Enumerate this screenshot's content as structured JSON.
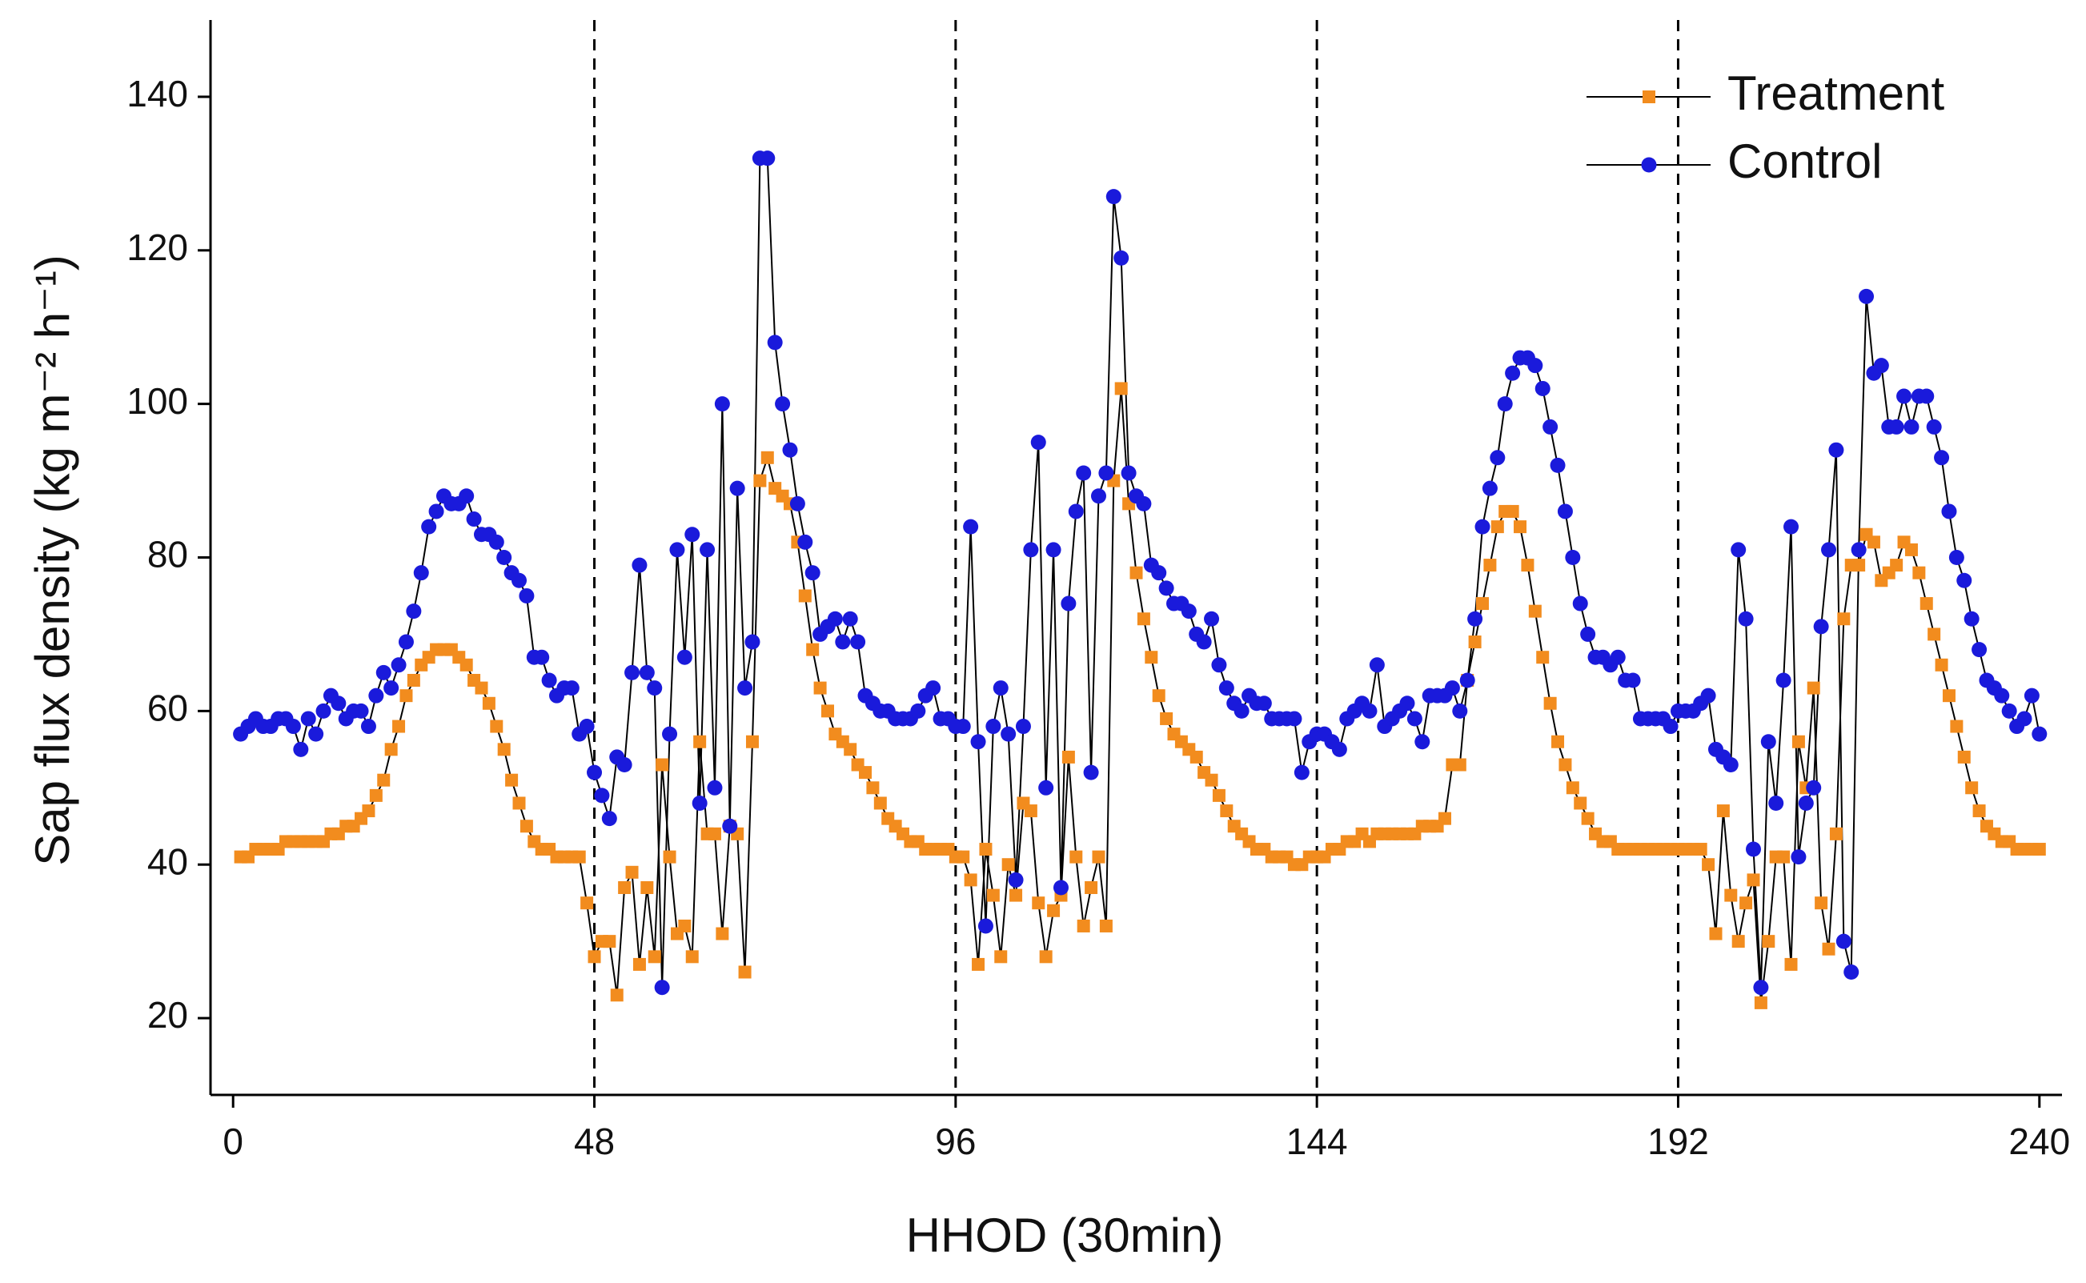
{
  "chart_data": {
    "type": "line",
    "xlabel": "HHOD (30min)",
    "ylabel": "Sap flux density (kg m⁻² h⁻¹)",
    "xlim": [
      -3,
      243
    ],
    "ylim": [
      10,
      150
    ],
    "xticks": [
      0,
      48,
      96,
      144,
      192,
      240
    ],
    "yticks": [
      20,
      40,
      60,
      80,
      100,
      120,
      140
    ],
    "vlines": [
      48,
      96,
      144,
      192
    ],
    "legend": "upper right",
    "x": [
      1,
      2,
      3,
      4,
      5,
      6,
      7,
      8,
      9,
      10,
      11,
      12,
      13,
      14,
      15,
      16,
      17,
      18,
      19,
      20,
      21,
      22,
      23,
      24,
      25,
      26,
      27,
      28,
      29,
      30,
      31,
      32,
      33,
      34,
      35,
      36,
      37,
      38,
      39,
      40,
      41,
      42,
      43,
      44,
      45,
      46,
      47,
      48,
      49,
      50,
      51,
      52,
      53,
      54,
      55,
      56,
      57,
      58,
      59,
      60,
      61,
      62,
      63,
      64,
      65,
      66,
      67,
      68,
      69,
      70,
      71,
      72,
      73,
      74,
      75,
      76,
      77,
      78,
      79,
      80,
      81,
      82,
      83,
      84,
      85,
      86,
      87,
      88,
      89,
      90,
      91,
      92,
      93,
      94,
      95,
      96,
      97,
      98,
      99,
      100,
      101,
      102,
      103,
      104,
      105,
      106,
      107,
      108,
      109,
      110,
      111,
      112,
      113,
      114,
      115,
      116,
      117,
      118,
      119,
      120,
      121,
      122,
      123,
      124,
      125,
      126,
      127,
      128,
      129,
      130,
      131,
      132,
      133,
      134,
      135,
      136,
      137,
      138,
      139,
      140,
      141,
      142,
      143,
      144,
      145,
      146,
      147,
      148,
      149,
      150,
      151,
      152,
      153,
      154,
      155,
      156,
      157,
      158,
      159,
      160,
      161,
      162,
      163,
      164,
      165,
      166,
      167,
      168,
      169,
      170,
      171,
      172,
      173,
      174,
      175,
      176,
      177,
      178,
      179,
      180,
      181,
      182,
      183,
      184,
      185,
      186,
      187,
      188,
      189,
      190,
      191,
      192,
      193,
      194,
      195,
      196,
      197,
      198,
      199,
      200,
      201,
      202,
      203,
      204,
      205,
      206,
      207,
      208,
      209,
      210,
      211,
      212,
      213,
      214,
      215,
      216,
      217,
      218,
      219,
      220,
      221,
      222,
      223,
      224,
      225,
      226,
      227,
      228,
      229,
      230,
      231,
      232,
      233,
      234,
      235,
      236,
      237,
      238,
      239,
      240
    ],
    "series": [
      {
        "name": "Treatment",
        "color": "#f28c1e",
        "marker": "square",
        "values": [
          41,
          41,
          42,
          42,
          42,
          42,
          43,
          43,
          43,
          43,
          43,
          43,
          44,
          44,
          45,
          45,
          46,
          47,
          49,
          51,
          55,
          58,
          62,
          64,
          66,
          67,
          68,
          68,
          68,
          67,
          66,
          64,
          63,
          61,
          58,
          55,
          51,
          48,
          45,
          43,
          42,
          42,
          41,
          41,
          41,
          41,
          35,
          28,
          30,
          30,
          23,
          37,
          39,
          27,
          37,
          28,
          53,
          41,
          31,
          32,
          28,
          56,
          44,
          44,
          31,
          45,
          44,
          26,
          56,
          90,
          93,
          89,
          88,
          87,
          82,
          75,
          68,
          63,
          60,
          57,
          56,
          55,
          53,
          52,
          50,
          48,
          46,
          45,
          44,
          43,
          43,
          42,
          42,
          42,
          42,
          41,
          41,
          38,
          27,
          42,
          36,
          28,
          40,
          36,
          48,
          47,
          35,
          28,
          34,
          36,
          54,
          41,
          32,
          37,
          41,
          32,
          90,
          102,
          87,
          78,
          72,
          67,
          62,
          59,
          57,
          56,
          55,
          54,
          52,
          51,
          49,
          47,
          45,
          44,
          43,
          42,
          42,
          41,
          41,
          41,
          40,
          40,
          41,
          41,
          41,
          42,
          42,
          43,
          43,
          44,
          43,
          44,
          44,
          44,
          44,
          44,
          44,
          45,
          45,
          45,
          46,
          53,
          53,
          64,
          69,
          74,
          79,
          84,
          86,
          86,
          84,
          79,
          73,
          67,
          61,
          56,
          53,
          50,
          48,
          46,
          44,
          43,
          43,
          42,
          42,
          42,
          42,
          42,
          42,
          42,
          42,
          42,
          42,
          42,
          42,
          40,
          31,
          47,
          36,
          30,
          35,
          38,
          22,
          30,
          41,
          41,
          27,
          56,
          50,
          63,
          35,
          29,
          44,
          72,
          79,
          79,
          83,
          82,
          77,
          78,
          79,
          82,
          81,
          78,
          74,
          70,
          66,
          62,
          58,
          54,
          50,
          47,
          45,
          44,
          43,
          43,
          42,
          42,
          42,
          42
        ]
      },
      {
        "name": "Control",
        "color": "#1a1adb",
        "marker": "circle",
        "values": [
          57,
          58,
          59,
          58,
          58,
          59,
          59,
          58,
          55,
          59,
          57,
          60,
          62,
          61,
          59,
          60,
          60,
          58,
          62,
          65,
          63,
          66,
          69,
          73,
          78,
          84,
          86,
          88,
          87,
          87,
          88,
          85,
          83,
          83,
          82,
          80,
          78,
          77,
          75,
          67,
          67,
          64,
          62,
          63,
          63,
          57,
          58,
          52,
          49,
          46,
          54,
          53,
          65,
          79,
          65,
          63,
          24,
          57,
          81,
          67,
          83,
          48,
          81,
          50,
          100,
          45,
          89,
          63,
          69,
          132,
          132,
          108,
          100,
          94,
          87,
          82,
          78,
          70,
          71,
          72,
          69,
          72,
          69,
          62,
          61,
          60,
          60,
          59,
          59,
          59,
          60,
          62,
          63,
          59,
          59,
          58,
          58,
          84,
          56,
          32,
          58,
          63,
          57,
          38,
          58,
          81,
          95,
          50,
          81,
          37,
          74,
          86,
          91,
          52,
          88,
          91,
          127,
          119,
          91,
          88,
          87,
          79,
          78,
          76,
          74,
          74,
          73,
          70,
          69,
          72,
          66,
          63,
          61,
          60,
          62,
          61,
          61,
          59,
          59,
          59,
          59,
          52,
          56,
          57,
          57,
          56,
          55,
          59,
          60,
          61,
          60,
          66,
          58,
          59,
          60,
          61,
          59,
          56,
          62,
          62,
          62,
          63,
          60,
          64,
          72,
          84,
          89,
          93,
          100,
          104,
          106,
          106,
          105,
          102,
          97,
          92,
          86,
          80,
          74,
          70,
          67,
          67,
          66,
          67,
          64,
          64,
          59,
          59,
          59,
          59,
          58,
          60,
          60,
          60,
          61,
          62,
          55,
          54,
          53,
          81,
          72,
          42,
          24,
          56,
          48,
          64,
          84,
          41,
          48,
          50,
          71,
          81,
          94,
          30,
          26,
          81,
          114,
          104,
          105,
          97,
          97,
          101,
          97,
          101,
          101,
          97,
          93,
          86,
          80,
          77,
          72,
          68,
          64,
          63,
          62,
          60,
          58,
          59,
          62,
          57
        ]
      }
    ]
  }
}
